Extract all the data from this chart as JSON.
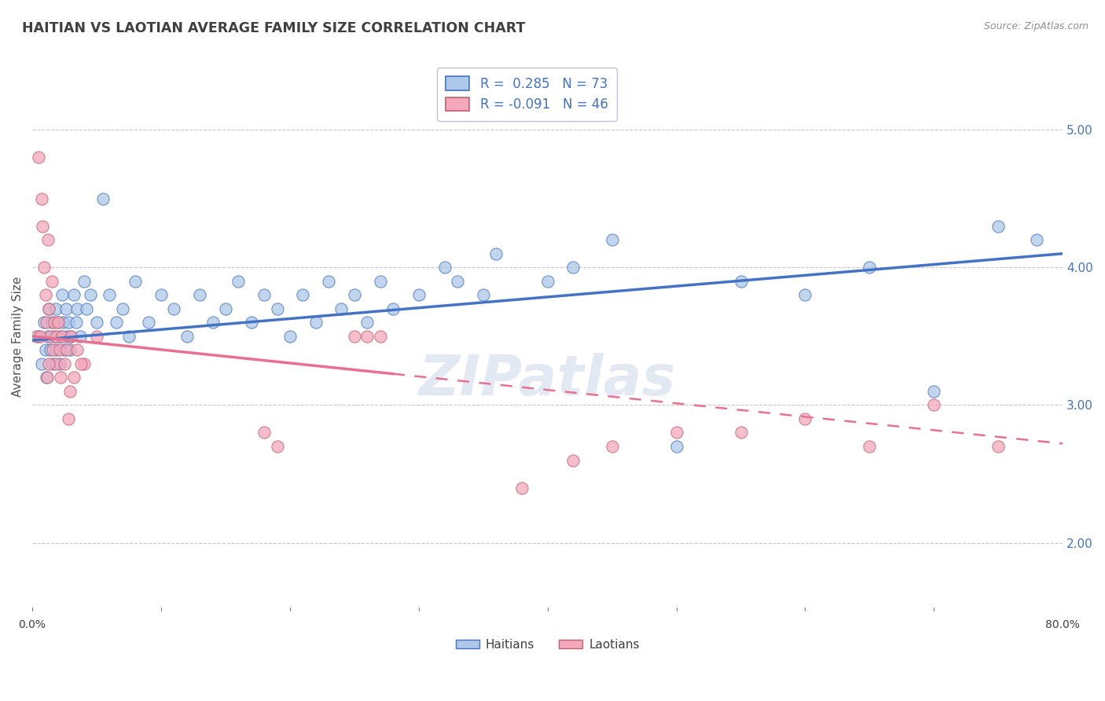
{
  "title": "HAITIAN VS LAOTIAN AVERAGE FAMILY SIZE CORRELATION CHART",
  "source": "Source: ZipAtlas.com",
  "ylabel": "Average Family Size",
  "yticks_right": [
    2.0,
    3.0,
    4.0,
    5.0
  ],
  "xlim": [
    0.0,
    80.0
  ],
  "ylim": [
    1.5,
    5.5
  ],
  "haitian_color": "#adc8e8",
  "laotian_color": "#f4a8bc",
  "haitian_line_color": "#4472c4",
  "laotian_line_color": "#e87090",
  "background_color": "#ffffff",
  "grid_color": "#c8c8c8",
  "title_color": "#404040",
  "legend_R_N_color": "#4472c4",
  "legend_title_haitian": "R =  0.285   N = 73",
  "legend_title_laotian": "R = -0.091   N = 46",
  "haitian_R": 0.285,
  "haitian_N": 73,
  "laotian_R": -0.091,
  "laotian_N": 46,
  "haitian_trend_x0": 0.0,
  "haitian_trend_y0": 3.47,
  "haitian_trend_x1": 80.0,
  "haitian_trend_y1": 4.1,
  "laotian_trend_x0": 0.0,
  "laotian_trend_y0": 3.5,
  "laotian_trend_x1": 80.0,
  "laotian_trend_y1": 2.72,
  "laotian_solid_x_end": 28.0,
  "haitian_x": [
    0.5,
    0.7,
    0.9,
    1.0,
    1.1,
    1.2,
    1.3,
    1.4,
    1.5,
    1.6,
    1.7,
    1.8,
    1.9,
    2.0,
    2.1,
    2.2,
    2.3,
    2.4,
    2.5,
    2.6,
    2.7,
    2.8,
    2.9,
    3.0,
    3.2,
    3.4,
    3.5,
    3.7,
    4.0,
    4.2,
    4.5,
    5.0,
    5.5,
    6.0,
    6.5,
    7.0,
    7.5,
    8.0,
    9.0,
    10.0,
    11.0,
    12.0,
    13.0,
    14.0,
    15.0,
    16.0,
    17.0,
    18.0,
    19.0,
    20.0,
    21.0,
    22.0,
    23.0,
    24.0,
    25.0,
    26.0,
    27.0,
    28.0,
    30.0,
    32.0,
    33.0,
    35.0,
    36.0,
    40.0,
    42.0,
    45.0,
    50.0,
    55.0,
    60.0,
    65.0,
    70.0,
    75.0,
    78.0
  ],
  "haitian_y": [
    3.5,
    3.3,
    3.6,
    3.4,
    3.2,
    3.5,
    3.7,
    3.4,
    3.6,
    3.3,
    3.5,
    3.7,
    3.4,
    3.6,
    3.3,
    3.5,
    3.8,
    3.6,
    3.4,
    3.7,
    3.5,
    3.6,
    3.4,
    3.5,
    3.8,
    3.6,
    3.7,
    3.5,
    3.9,
    3.7,
    3.8,
    3.6,
    4.5,
    3.8,
    3.6,
    3.7,
    3.5,
    3.9,
    3.6,
    3.8,
    3.7,
    3.5,
    3.8,
    3.6,
    3.7,
    3.9,
    3.6,
    3.8,
    3.7,
    3.5,
    3.8,
    3.6,
    3.9,
    3.7,
    3.8,
    3.6,
    3.9,
    3.7,
    3.8,
    4.0,
    3.9,
    3.8,
    4.1,
    3.9,
    4.0,
    4.2,
    2.7,
    3.9,
    3.8,
    4.0,
    3.1,
    4.3,
    4.2
  ],
  "laotian_x": [
    0.3,
    0.5,
    0.7,
    0.8,
    0.9,
    1.0,
    1.1,
    1.2,
    1.3,
    1.4,
    1.5,
    1.6,
    1.7,
    1.8,
    1.9,
    2.0,
    2.1,
    2.2,
    2.3,
    2.5,
    2.7,
    2.9,
    3.0,
    3.2,
    3.5,
    4.0,
    5.0,
    25.0,
    26.0,
    27.0,
    38.0,
    42.0,
    45.0,
    50.0,
    55.0,
    60.0,
    65.0,
    70.0,
    75.0,
    0.6,
    1.15,
    1.25,
    2.8,
    3.8,
    18.0,
    19.0
  ],
  "laotian_y": [
    3.5,
    4.8,
    4.5,
    4.3,
    4.0,
    3.8,
    3.6,
    4.2,
    3.7,
    3.5,
    3.9,
    3.4,
    3.6,
    3.3,
    3.5,
    3.6,
    3.4,
    3.2,
    3.5,
    3.3,
    3.4,
    3.1,
    3.5,
    3.2,
    3.4,
    3.3,
    3.5,
    3.5,
    3.5,
    3.5,
    2.4,
    2.6,
    2.7,
    2.8,
    2.8,
    2.9,
    2.7,
    3.0,
    2.7,
    3.5,
    3.2,
    3.3,
    2.9,
    3.3,
    2.8,
    2.7
  ]
}
